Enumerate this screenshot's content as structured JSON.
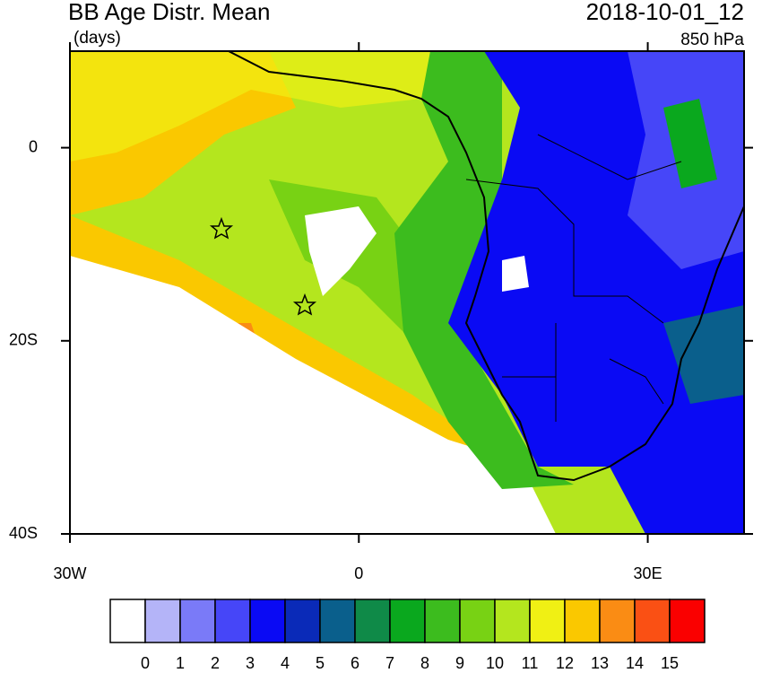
{
  "chart_data": {
    "type": "map",
    "title": "BB Age Distr. Mean",
    "units": "(days)",
    "date": "2018-10-01_12",
    "level": "850 hPa",
    "xlim": [
      -30,
      40
    ],
    "ylim": [
      -40,
      10
    ],
    "xticks": [
      {
        "value": -30,
        "label": "30W"
      },
      0,
      {
        "value": 30,
        "label": "30E"
      }
    ],
    "yticks": [
      0,
      {
        "value": -20,
        "label": "20S"
      },
      {
        "value": -40,
        "label": "40S"
      }
    ],
    "colorbar": {
      "levels": [
        0,
        1,
        2,
        3,
        4,
        5,
        6,
        7,
        8,
        9,
        10,
        11,
        12,
        13,
        14,
        15
      ],
      "colors": [
        "#ffffff",
        "#b4b4f8",
        "#7a7af8",
        "#4646f8",
        "#0a0af4",
        "#0a2ab8",
        "#0a5f8c",
        "#0f8a48",
        "#0aa81e",
        "#3cbc1e",
        "#78d214",
        "#b4e61e",
        "#f0f014",
        "#fac800",
        "#fa8c14",
        "#fa5014",
        "#fa0000"
      ]
    }
  }
}
